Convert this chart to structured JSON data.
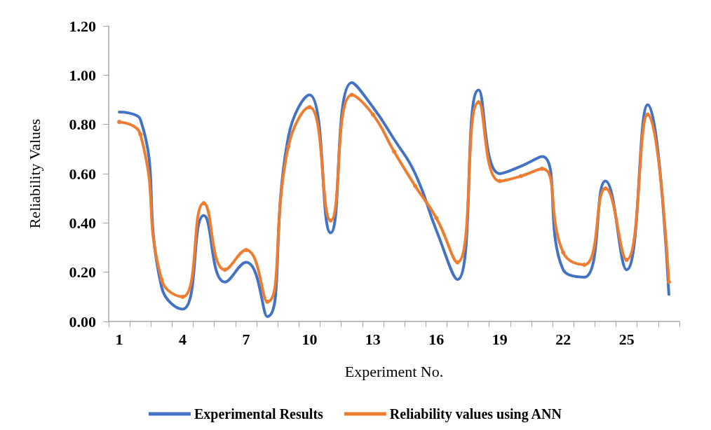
{
  "chart_data": {
    "type": "line",
    "xlabel": "Experiment No.",
    "ylabel": "Reliability Values",
    "categories": [
      "1",
      null,
      null,
      "4",
      null,
      null,
      "7",
      null,
      null,
      "10",
      null,
      null,
      "13",
      null,
      null,
      "16",
      null,
      null,
      "19",
      null,
      null,
      "22",
      null,
      null,
      "25",
      null,
      null
    ],
    "series": [
      {
        "name": "Experimental Results",
        "color": "#4472c4",
        "marker": "none",
        "values": [
          0.85,
          0.82,
          0.14,
          0.05,
          0.43,
          0.16,
          0.24,
          0.02,
          0.75,
          0.92,
          0.36,
          0.97,
          0.87,
          0.74,
          0.6,
          0.37,
          0.17,
          0.94,
          0.6,
          0.63,
          0.67,
          0.21,
          0.18,
          0.57,
          0.21,
          0.88,
          0.11
        ]
      },
      {
        "name": "Reliability values using ANN",
        "color": "#ed7d31",
        "marker": "circle",
        "values": [
          0.81,
          0.76,
          0.17,
          0.1,
          0.48,
          0.21,
          0.29,
          0.08,
          0.71,
          0.87,
          0.41,
          0.92,
          0.84,
          0.69,
          0.55,
          0.42,
          0.24,
          0.89,
          0.57,
          0.59,
          0.62,
          0.28,
          0.23,
          0.54,
          0.25,
          0.84,
          0.16
        ]
      }
    ],
    "ylim": [
      0,
      1.2
    ],
    "yticks": [
      {
        "value": 0,
        "label": "0.00"
      },
      {
        "value": 0.2,
        "label": "0.20"
      },
      {
        "value": 0.4,
        "label": "0.40"
      },
      {
        "value": 0.6,
        "label": "0.60"
      },
      {
        "value": 0.8,
        "label": "0.80"
      },
      {
        "value": 1.0,
        "label": "1.00"
      },
      {
        "value": 1.2,
        "label": "1.20"
      }
    ],
    "grid": false,
    "legend": "bottom"
  }
}
